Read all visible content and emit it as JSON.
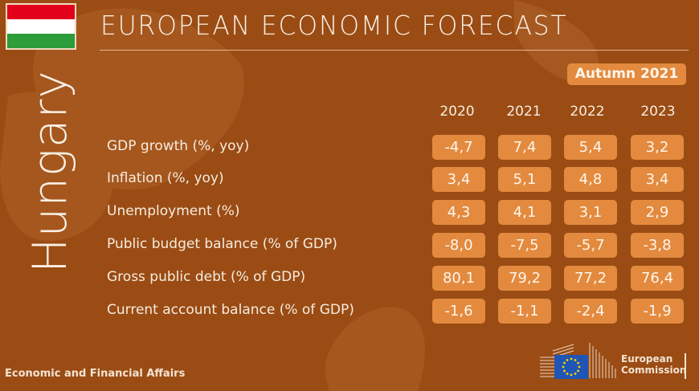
{
  "header": {
    "title": "EUROPEAN ECONOMIC FORECAST",
    "country": "Hungary",
    "edition": "Autumn 2021",
    "flag_colors": [
      "#e2001a",
      "#ffffff",
      "#2d9c3a"
    ]
  },
  "table": {
    "years": [
      "2020",
      "2021",
      "2022",
      "2023"
    ],
    "rows": [
      {
        "label": "GDP growth (%, yoy)",
        "values": [
          "-4,7",
          "7,4",
          "5,4",
          "3,2"
        ]
      },
      {
        "label": "Inflation (%, yoy)",
        "values": [
          "3,4",
          "5,1",
          "4,8",
          "3,4"
        ]
      },
      {
        "label": "Unemployment (%)",
        "values": [
          "4,3",
          "4,1",
          "3,1",
          "2,9"
        ]
      },
      {
        "label": "Public budget balance (% of GDP)",
        "values": [
          "-8,0",
          "-7,5",
          "-5,7",
          "-3,8"
        ]
      },
      {
        "label": "Gross public debt (% of GDP)",
        "values": [
          "80,1",
          "79,2",
          "77,2",
          "76,4"
        ]
      },
      {
        "label": "Current account balance (% of GDP)",
        "values": [
          "-1,6",
          "-1,1",
          "-2,4",
          "-1,9"
        ]
      }
    ]
  },
  "footer": {
    "department": "Economic and Financial Affairs",
    "logo_line1": "European",
    "logo_line2": "Commission"
  },
  "colors": {
    "background": "#9a4c14",
    "accent": "#e38a3f",
    "eu_blue": "#1f55b5",
    "eu_star": "#ffd200"
  }
}
